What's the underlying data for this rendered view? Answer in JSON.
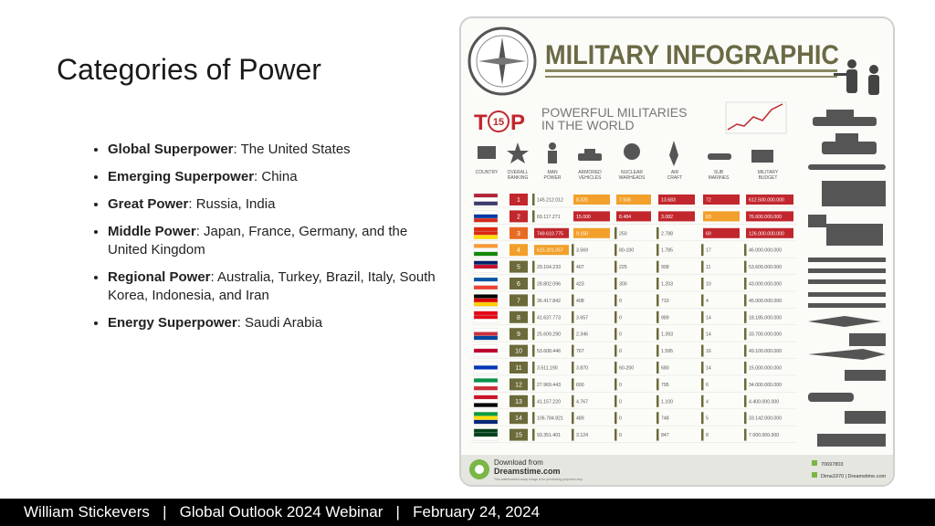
{
  "slide": {
    "title": "Categories of Power",
    "bullets": [
      {
        "label": "Global Superpower",
        "text": ": The United States"
      },
      {
        "label": "Emerging Superpower",
        "text": ": China"
      },
      {
        "label": "Great Power",
        "text": ": Russia, India"
      },
      {
        "label": "Middle Power",
        "text": ": Japan, France, Germany, and the United Kingdom"
      },
      {
        "label": "Regional Power",
        "text": ": Australia, Turkey, Brazil, Italy, South Korea, Indonesia, and Iran"
      },
      {
        "label": "Energy Superpower",
        "text": ": Saudi Arabia"
      }
    ],
    "footer": "William Stickevers   |   Global Outlook 2024 Webinar   |   February 24, 2024"
  },
  "infographic": {
    "title": "MILITARY INFOGRAPHIC",
    "top_letters": [
      "T",
      "P"
    ],
    "top_number": "15",
    "subtitle": [
      "POWERFUL MILITARIES",
      "IN THE WORLD"
    ],
    "columns": [
      [
        "COUNTRY"
      ],
      [
        "OVERALL",
        "RANKING"
      ],
      [
        "MAN",
        "POWER"
      ],
      [
        "ARMORED",
        "VEHICLES"
      ],
      [
        "NUCLEAR",
        "WARHEADS"
      ],
      [
        "AIR",
        "CRAFT"
      ],
      [
        "SUB",
        "MARINES"
      ],
      [
        "MILITARY",
        "BUDGET"
      ]
    ],
    "rows": [
      [
        "1",
        "145.212.012",
        "8.325",
        "7.506",
        "13.683",
        "72",
        "612.500.000.000"
      ],
      [
        "2",
        "69.117.271",
        "15.000",
        "8.484",
        "3.082",
        "63",
        "76.600.000.000"
      ],
      [
        "3",
        "749.610.775",
        "9.150",
        "250",
        "2.788",
        "69",
        "126.000.000.000"
      ],
      [
        "4",
        "615.201.057",
        "3.569",
        "80-100",
        "1.785",
        "17",
        "46.000.000.000"
      ],
      [
        "5",
        "29.164.233",
        "407",
        "225",
        "908",
        "11",
        "53.600.000.000"
      ],
      [
        "6",
        "28.802.096",
        "423",
        "300",
        "1.203",
        "10",
        "43.000.000.000"
      ],
      [
        "7",
        "36.417.842",
        "408",
        "0",
        "710",
        "4",
        "45.000.000.000"
      ],
      [
        "8",
        "41.637.773",
        "3.657",
        "0",
        "989",
        "14",
        "18.185.000.000"
      ],
      [
        "9",
        "25.609.290",
        "2.346",
        "0",
        "1.393",
        "14",
        "33.700.000.000"
      ],
      [
        "10",
        "53.608.446",
        "767",
        "0",
        "1.595",
        "16",
        "49.100.000.000"
      ],
      [
        "11",
        "3.511.190",
        "3.870",
        "60-200",
        "680",
        "14",
        "15.000.000.000"
      ],
      [
        "12",
        "27.969.443",
        "600",
        "0",
        "795",
        "6",
        "34.000.000.000"
      ],
      [
        "13",
        "41.157.220",
        "4.767",
        "0",
        "1.100",
        "4",
        "4.400.000.000"
      ],
      [
        "14",
        "106.784.821",
        "489",
        "0",
        "748",
        "5",
        "33.142.000.000"
      ],
      [
        "15",
        "93.351.401",
        "3.124",
        "0",
        "847",
        "8",
        "7.000.000.000"
      ]
    ],
    "download": {
      "line1": "Download from",
      "line2": "Dreamstime.com",
      "line3": "This watermarked comp image is for previewing purposes only.",
      "id": "70697803",
      "author": "Dima1970 | Dreamstime.com"
    }
  }
}
